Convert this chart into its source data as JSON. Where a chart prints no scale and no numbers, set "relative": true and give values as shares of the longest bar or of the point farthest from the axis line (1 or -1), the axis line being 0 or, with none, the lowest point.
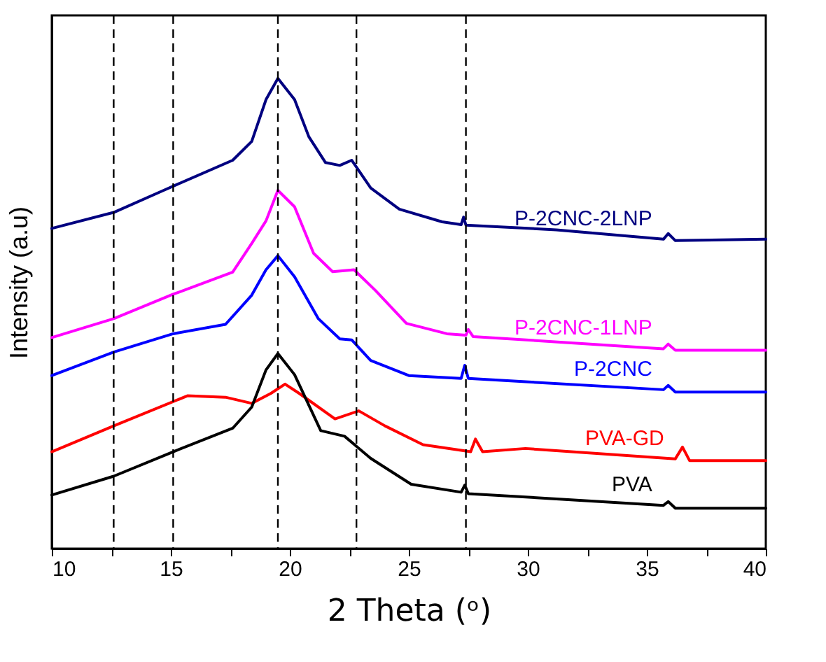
{
  "chart_data": {
    "type": "line",
    "relative": true,
    "xlabel": "2 Theta (ᵒ)",
    "ylabel": "Intensity (a.u)",
    "xlim": [
      10,
      40
    ],
    "xticks": [
      10,
      {
        "value": 12.5,
        "label": null
      },
      15,
      {
        "value": 17.5,
        "label": null
      },
      20,
      {
        "value": 22.5,
        "label": null
      },
      25,
      {
        "value": 27.5,
        "label": null
      },
      30,
      {
        "value": 32.5,
        "label": null
      },
      35,
      {
        "value": 37.5,
        "label": null
      },
      40
    ],
    "grid": false,
    "legend": false,
    "marker": "none",
    "line_style": "solid",
    "ref_lines": [
      {
        "axis": "x",
        "value": 12.6,
        "label": null,
        "color": "#000000",
        "line_style": "dashed"
      },
      {
        "axis": "x",
        "value": 15.1,
        "label": null,
        "color": "#000000",
        "line_style": "dashed"
      },
      {
        "axis": "x",
        "value": 19.5,
        "label": null,
        "color": "#000000",
        "line_style": "dashed"
      },
      {
        "axis": "x",
        "value": 22.8,
        "label": null,
        "color": "#000000",
        "line_style": "dashed"
      },
      {
        "axis": "x",
        "value": 27.4,
        "label": null,
        "color": "#000000",
        "line_style": "dashed"
      }
    ],
    "series": [
      {
        "name": "P-2CNC-2LNP",
        "color": "#000080",
        "x": [
          10.0,
          12.6,
          14.7,
          17.6,
          18.4,
          19.0,
          19.5,
          20.2,
          20.8,
          21.5,
          22.1,
          22.6,
          23.4,
          24.6,
          26.4,
          27.2,
          27.3,
          27.4,
          31.2,
          35.7,
          35.9,
          36.2,
          40.0
        ],
        "values": [
          0.681,
          0.715,
          0.762,
          0.826,
          0.866,
          0.955,
          1.0,
          0.955,
          0.876,
          0.821,
          0.815,
          0.826,
          0.767,
          0.722,
          0.695,
          0.689,
          0.705,
          0.688,
          0.678,
          0.658,
          0.67,
          0.655,
          0.658
        ]
      },
      {
        "name": "P-2CNC-1LNP",
        "color": "#ff00ff",
        "x": [
          10.0,
          12.6,
          15.1,
          17.6,
          18.4,
          19.0,
          19.5,
          20.2,
          21.0,
          21.8,
          22.7,
          23.6,
          24.9,
          26.6,
          27.4,
          27.5,
          27.7,
          35.7,
          35.9,
          36.2,
          40.0
        ],
        "values": [
          0.449,
          0.489,
          0.541,
          0.588,
          0.649,
          0.697,
          0.762,
          0.727,
          0.628,
          0.589,
          0.593,
          0.549,
          0.479,
          0.457,
          0.454,
          0.466,
          0.451,
          0.425,
          0.435,
          0.422,
          0.422
        ]
      },
      {
        "name": "P-2CNC",
        "color": "#0000ff",
        "x": [
          10.0,
          12.6,
          15.1,
          17.3,
          18.4,
          19.0,
          19.5,
          20.2,
          21.2,
          22.1,
          22.6,
          23.4,
          25.0,
          27.2,
          27.35,
          27.5,
          35.7,
          35.9,
          36.2,
          40.0
        ],
        "values": [
          0.368,
          0.418,
          0.457,
          0.477,
          0.539,
          0.593,
          0.623,
          0.578,
          0.489,
          0.446,
          0.444,
          0.4,
          0.368,
          0.362,
          0.39,
          0.362,
          0.338,
          0.347,
          0.333,
          0.333
        ]
      },
      {
        "name": "PVA-GD",
        "color": "#ff0000",
        "x": [
          10.0,
          12.6,
          15.7,
          17.3,
          18.4,
          19.2,
          19.8,
          20.4,
          21.9,
          22.9,
          24.0,
          25.6,
          27.6,
          27.8,
          28.1,
          29.9,
          36.2,
          36.5,
          36.8,
          40.0
        ],
        "values": [
          0.206,
          0.261,
          0.325,
          0.322,
          0.309,
          0.33,
          0.35,
          0.33,
          0.276,
          0.293,
          0.261,
          0.221,
          0.206,
          0.233,
          0.206,
          0.213,
          0.191,
          0.216,
          0.187,
          0.187
        ]
      },
      {
        "name": "PVA",
        "color": "#000000",
        "x": [
          10.0,
          12.6,
          15.1,
          17.6,
          18.4,
          19.0,
          19.5,
          20.2,
          21.3,
          22.3,
          23.4,
          25.1,
          27.2,
          27.35,
          27.5,
          35.7,
          35.9,
          36.2,
          40.0
        ],
        "values": [
          0.114,
          0.154,
          0.206,
          0.256,
          0.301,
          0.38,
          0.415,
          0.37,
          0.251,
          0.239,
          0.192,
          0.137,
          0.12,
          0.135,
          0.117,
          0.092,
          0.1,
          0.086,
          0.086
        ]
      }
    ]
  }
}
